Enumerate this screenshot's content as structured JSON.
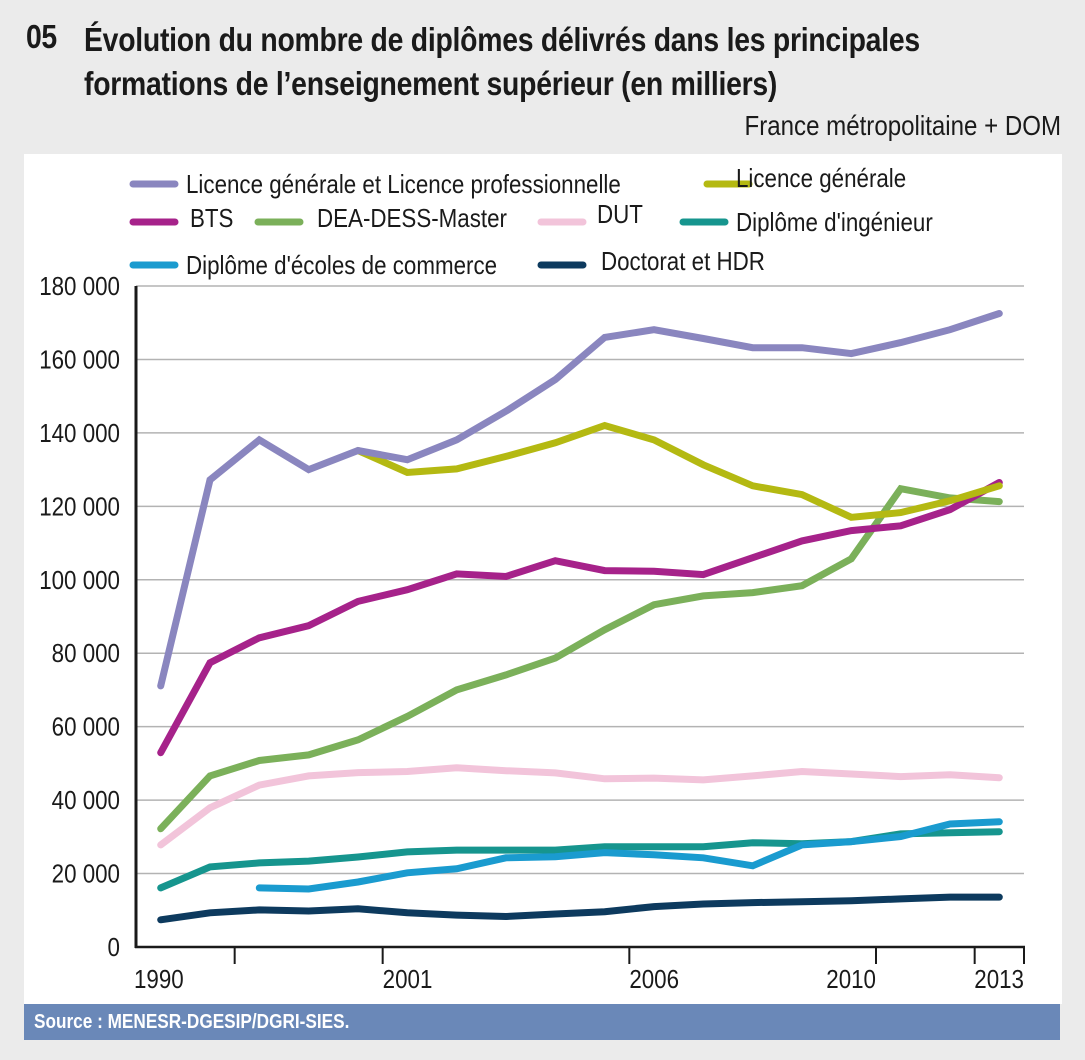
{
  "header": {
    "number": "05",
    "title_line1": "Évolution du nombre de diplômes délivrés dans les principales",
    "title_line2": "formations de l’enseignement supérieur (en milliers)",
    "subtitle": "France métropolitaine + DOM"
  },
  "footer": {
    "source": "Source : MENESR-DGESIP/DGRI-SIES."
  },
  "colors": {
    "background": "#ebebeb",
    "panel": "#ffffff",
    "source_bar": "#6a88b8",
    "gridline": "#b3b3b3",
    "axis": "#1a1a1a"
  },
  "chart_data": {
    "type": "line",
    "title": "Évolution du nombre de diplômes délivrés dans les principales formations de l’enseignement supérieur (en milliers)",
    "subtitle": "France métropolitaine + DOM",
    "xlabel": "",
    "ylabel": "",
    "ylim": [
      0,
      180000
    ],
    "yticks": [
      0,
      20000,
      40000,
      60000,
      80000,
      100000,
      120000,
      140000,
      160000,
      180000
    ],
    "ytick_labels": [
      "0",
      "20 000",
      "40 000",
      "60 000",
      "80 000",
      "100 000",
      "120 000",
      "140 000",
      "160 000",
      "180 000"
    ],
    "grid": true,
    "legend_position": "top",
    "n_points": 18,
    "x_tick_labels": [
      {
        "label": "1990",
        "index": 0
      },
      {
        "label": "2001",
        "index": 5
      },
      {
        "label": "2006",
        "index": 10
      },
      {
        "label": "2010",
        "index": 14
      },
      {
        "label": "2013",
        "index": 17
      }
    ],
    "x_tick_boundaries": [
      2,
      5,
      10,
      15,
      17,
      18
    ],
    "series": [
      {
        "name": "Licence générale et Licence professionnelle",
        "color": "#8a86bf",
        "values": [
          71100,
          127200,
          138100,
          130000,
          135200,
          132700,
          138100,
          145900,
          154500,
          166000,
          168100,
          165700,
          163200,
          163200,
          161600,
          164600,
          168100,
          172500
        ]
      },
      {
        "name": "Licence générale",
        "color": "#b4b912",
        "values": [
          null,
          null,
          null,
          null,
          135200,
          129200,
          130200,
          133600,
          137300,
          142000,
          138100,
          131300,
          125600,
          123200,
          117000,
          118300,
          121500,
          125600
        ]
      },
      {
        "name": "BTS",
        "color": "#a6228a",
        "values": [
          52900,
          77400,
          84200,
          87500,
          94100,
          97300,
          101600,
          100900,
          105200,
          102500,
          102300,
          101400,
          106000,
          110600,
          113400,
          114700,
          119100,
          126500
        ]
      },
      {
        "name": "DEA-DESS-Master",
        "color": "#7bb05a",
        "values": [
          32200,
          46600,
          50800,
          52300,
          56400,
          62800,
          70000,
          74100,
          78700,
          86400,
          93200,
          95600,
          96500,
          98400,
          105700,
          124800,
          122300,
          121300
        ]
      },
      {
        "name": "DUT",
        "color": "#f2c4da",
        "values": [
          27800,
          37900,
          44100,
          46600,
          47500,
          47800,
          48800,
          48000,
          47400,
          45800,
          46000,
          45500,
          46600,
          47800,
          47100,
          46400,
          46900,
          46100
        ]
      },
      {
        "name": "Diplôme d'ingénieur",
        "color": "#16958e",
        "values": [
          16100,
          21800,
          22900,
          23400,
          24500,
          25900,
          26400,
          26400,
          26400,
          27300,
          27300,
          27300,
          28400,
          28100,
          28700,
          30800,
          31100,
          31400
        ]
      },
      {
        "name": "Diplôme d'écoles de commerce",
        "color": "#1a9bcf",
        "values": [
          null,
          null,
          16100,
          15800,
          17700,
          20200,
          21300,
          24300,
          24600,
          25700,
          25100,
          24300,
          22100,
          27800,
          28700,
          30100,
          33500,
          34100
        ]
      },
      {
        "name": "Doctorat et HDR",
        "color": "#0d3a5e",
        "values": [
          7400,
          9300,
          10100,
          9800,
          10400,
          9300,
          8700,
          8300,
          9000,
          9600,
          11000,
          11700,
          12100,
          12300,
          12600,
          13100,
          13600,
          13600
        ]
      }
    ],
    "legend_rows": [
      [
        0,
        1
      ],
      [
        2,
        3,
        4,
        5
      ],
      [
        6,
        7
      ]
    ]
  }
}
